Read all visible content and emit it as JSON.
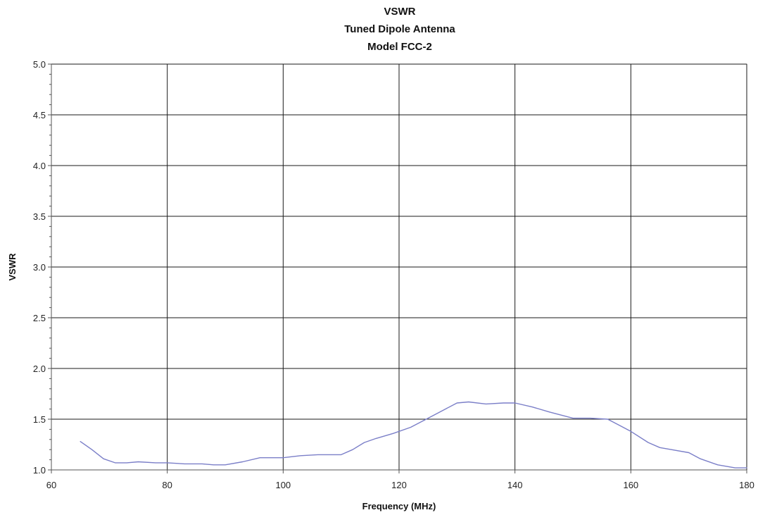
{
  "chart_data": {
    "type": "line",
    "title_lines": [
      "VSWR",
      "Tuned Dipole Antenna",
      "Model FCC-2"
    ],
    "xlabel": "Frequency (MHz)",
    "ylabel": "VSWR",
    "xlim": [
      60,
      180
    ],
    "ylim": [
      1.0,
      5.0
    ],
    "x_ticks": [
      "60",
      "80",
      "100",
      "120",
      "140",
      "160",
      "180"
    ],
    "y_ticks": [
      "1.0",
      "1.5",
      "2.0",
      "2.5",
      "3.0",
      "3.5",
      "4.0",
      "4.5",
      "5.0"
    ],
    "grid": true,
    "legend": "none",
    "series": [
      {
        "color": "#7b7fc8",
        "x": [
          65,
          67,
          69,
          71,
          73,
          75,
          78,
          80,
          83,
          86,
          88,
          90,
          93,
          96,
          100,
          103,
          106,
          110,
          112,
          114,
          116,
          119,
          122,
          125,
          128,
          130,
          132,
          135,
          138,
          140,
          143,
          146,
          150,
          153,
          156,
          158,
          160,
          163,
          165,
          167,
          170,
          172,
          175,
          178,
          180
        ],
        "y": [
          1.28,
          1.2,
          1.11,
          1.07,
          1.07,
          1.08,
          1.07,
          1.07,
          1.06,
          1.06,
          1.05,
          1.05,
          1.08,
          1.12,
          1.12,
          1.14,
          1.15,
          1.15,
          1.2,
          1.27,
          1.31,
          1.36,
          1.42,
          1.51,
          1.6,
          1.66,
          1.67,
          1.65,
          1.66,
          1.66,
          1.62,
          1.57,
          1.51,
          1.51,
          1.5,
          1.44,
          1.38,
          1.27,
          1.22,
          1.2,
          1.17,
          1.11,
          1.05,
          1.02,
          1.02
        ]
      }
    ]
  }
}
